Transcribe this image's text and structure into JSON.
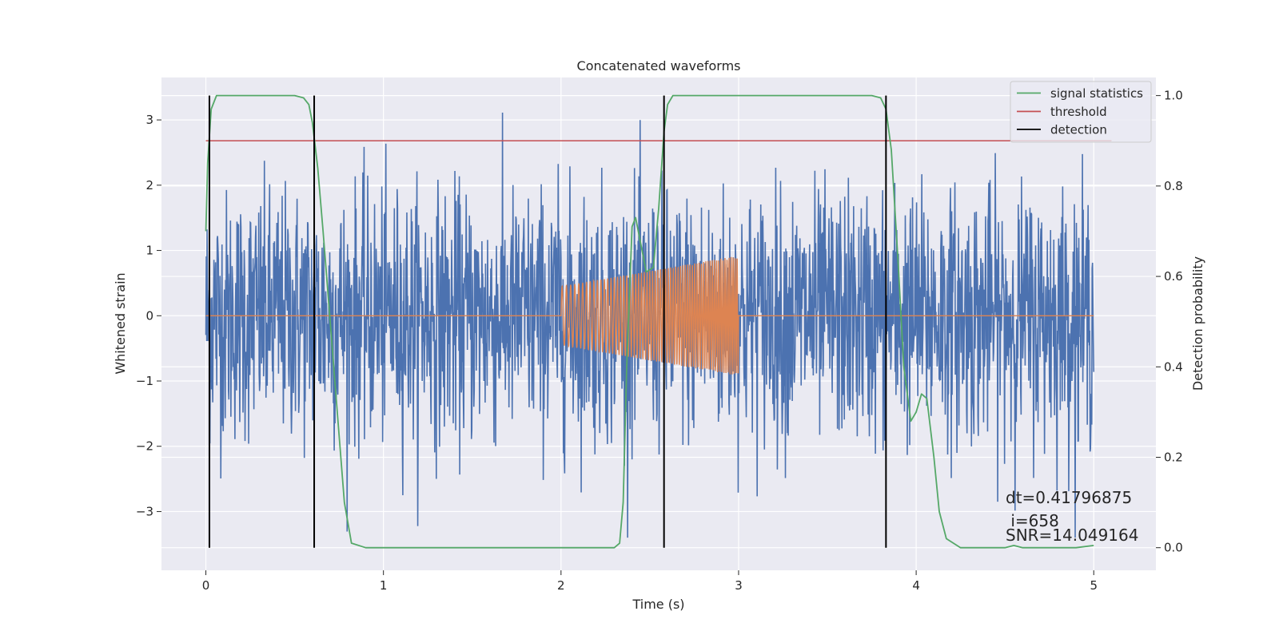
{
  "chart_data": {
    "type": "line",
    "title": "Concatenated waveforms",
    "xlabel": "Time (s)",
    "ylabel": "Whitened strain",
    "ylabel_right": "Detection probability",
    "xlim": [
      -0.25,
      5.35
    ],
    "ylim": [
      -3.9,
      3.65
    ],
    "ylim_right": [
      -0.05,
      1.04
    ],
    "xticks": [
      0,
      1,
      2,
      3,
      4,
      5
    ],
    "yticks": [
      -3,
      -2,
      -1,
      0,
      1,
      2,
      3
    ],
    "yticks_right": [
      0.0,
      0.2,
      0.4,
      0.6,
      0.8,
      1.0
    ],
    "xtick_labels": [
      "0",
      "1",
      "2",
      "3",
      "4",
      "5"
    ],
    "ytick_labels": [
      "−3",
      "−2",
      "−1",
      "0",
      "1",
      "2",
      "3"
    ],
    "ytick_right_labels": [
      "0.0",
      "0.2",
      "0.4",
      "0.6",
      "0.8",
      "1.0"
    ],
    "grid": true,
    "legend_position": "top-right",
    "colors": {
      "background": "#eaeaf2",
      "strain": "#4c72b0",
      "injection": "#dd8452",
      "signal_statistics": "#55a868",
      "threshold": "#c44e52",
      "detection": "#000000"
    },
    "series": [
      {
        "name": "signal statistics",
        "axis": "right",
        "x": [
          0.0,
          0.01,
          0.03,
          0.06,
          0.1,
          0.2,
          0.5,
          0.55,
          0.58,
          0.6,
          0.63,
          0.66,
          0.7,
          0.75,
          0.78,
          0.82,
          0.9,
          1.5,
          2.0,
          2.3,
          2.33,
          2.35,
          2.37,
          2.4,
          2.42,
          2.45,
          2.48,
          2.52,
          2.55,
          2.58,
          2.6,
          2.63,
          2.7,
          3.0,
          3.75,
          3.8,
          3.83,
          3.86,
          3.9,
          3.93,
          3.97,
          4.0,
          4.03,
          4.06,
          4.1,
          4.13,
          4.17,
          4.25,
          4.5,
          4.55,
          4.6,
          4.9,
          5.0
        ],
        "y": [
          0.7,
          0.85,
          0.97,
          1.0,
          1.0,
          1.0,
          1.0,
          0.995,
          0.98,
          0.94,
          0.84,
          0.7,
          0.5,
          0.25,
          0.1,
          0.01,
          0.0,
          0.0,
          0.0,
          0.0,
          0.01,
          0.1,
          0.4,
          0.71,
          0.73,
          0.67,
          0.61,
          0.62,
          0.75,
          0.92,
          0.98,
          1.0,
          1.0,
          1.0,
          1.0,
          0.995,
          0.97,
          0.88,
          0.62,
          0.4,
          0.28,
          0.3,
          0.34,
          0.33,
          0.2,
          0.08,
          0.02,
          0.0,
          0.0,
          0.005,
          0.0,
          0.0,
          0.005
        ]
      },
      {
        "name": "threshold",
        "axis": "right",
        "x": [
          0.0,
          5.1
        ],
        "y": [
          0.9,
          0.9
        ]
      },
      {
        "name": "detection",
        "axis": "left",
        "x": [
          0.02,
          0.61,
          2.58,
          3.83
        ]
      },
      {
        "axis": "left",
        "x_range": [
          0.0,
          5.0
        ],
        "peak_amplitude": 3.4
      },
      {
        "axis": "left",
        "x_range": [
          2.0,
          3.0
        ],
        "amplitude_start": 0.45,
        "amplitude_end": 0.92
      }
    ],
    "annotations": [
      "dt=0.41796875",
      " i=658",
      "SNR=14.049164"
    ]
  }
}
